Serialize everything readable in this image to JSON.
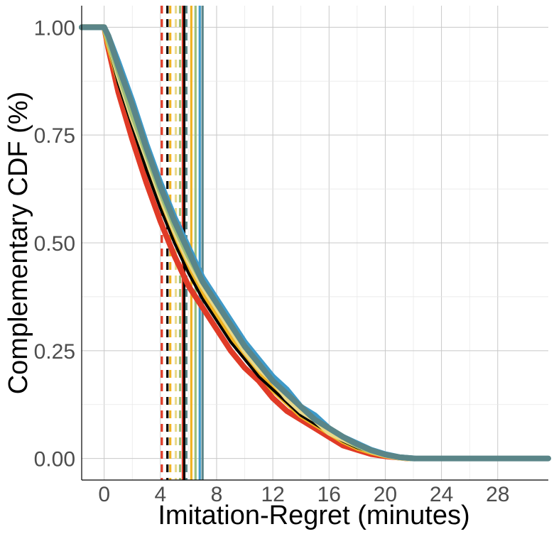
{
  "chart_data": {
    "type": "line",
    "title": "",
    "xlabel": "Imitation-Regret (minutes)",
    "ylabel": "Complementary CDF (%)",
    "xlim": [
      -1.6,
      31.6
    ],
    "ylim": [
      -0.05,
      1.05
    ],
    "x_ticks": [
      0,
      4,
      8,
      12,
      16,
      20,
      24,
      28
    ],
    "x_tick_labels": [
      "0",
      "4",
      "8",
      "12",
      "16",
      "20",
      "24",
      "28"
    ],
    "y_ticks": [
      0,
      0.25,
      0.5,
      0.75,
      1.0
    ],
    "y_tick_labels": [
      "0.00",
      "0.25",
      "0.50",
      "0.75",
      "1.00"
    ],
    "grid": true,
    "legend": "none",
    "series": [
      {
        "color": "#e03a26",
        "width": 8,
        "x": [
          -1.6,
          0,
          0.3,
          1,
          2,
          3,
          4,
          5,
          6,
          7,
          8,
          9,
          10,
          11,
          12,
          13,
          14,
          15,
          16,
          17,
          18,
          19,
          20,
          21,
          21.6
        ],
        "y": [
          1,
          1,
          0.95,
          0.85,
          0.74,
          0.64,
          0.55,
          0.47,
          0.4,
          0.35,
          0.3,
          0.25,
          0.21,
          0.18,
          0.14,
          0.11,
          0.09,
          0.07,
          0.05,
          0.03,
          0.02,
          0.01,
          0.005,
          0.002,
          0
        ]
      },
      {
        "color": "#f0b323",
        "width": 8,
        "x": [
          -1.6,
          0,
          0.3,
          1,
          2,
          3,
          4,
          5,
          6,
          7,
          8,
          9,
          10,
          11,
          12,
          13,
          14,
          15,
          16,
          17,
          18,
          19,
          20,
          21,
          21.7
        ],
        "y": [
          1,
          1,
          0.96,
          0.88,
          0.78,
          0.68,
          0.59,
          0.51,
          0.44,
          0.38,
          0.33,
          0.28,
          0.24,
          0.2,
          0.16,
          0.13,
          0.1,
          0.08,
          0.06,
          0.04,
          0.025,
          0.015,
          0.007,
          0.002,
          0
        ]
      },
      {
        "color": "#000000",
        "width": 4,
        "x": [
          -1.6,
          0,
          0.3,
          1,
          2,
          3,
          4,
          5,
          6,
          7,
          8,
          9,
          10,
          11,
          12,
          13,
          14,
          15,
          16,
          17,
          18,
          19,
          20,
          21,
          21.8
        ],
        "y": [
          1,
          1,
          0.96,
          0.87,
          0.77,
          0.67,
          0.58,
          0.5,
          0.43,
          0.37,
          0.32,
          0.27,
          0.23,
          0.19,
          0.16,
          0.13,
          0.1,
          0.08,
          0.06,
          0.04,
          0.025,
          0.015,
          0.007,
          0.002,
          0
        ]
      },
      {
        "color": "#e9d98a",
        "width": 8,
        "x": [
          -1.6,
          0,
          0.3,
          1,
          2,
          3,
          4,
          5,
          6,
          7,
          8,
          9,
          10,
          11,
          12,
          13,
          14,
          15,
          16,
          17,
          18,
          19,
          20,
          21,
          21.8
        ],
        "y": [
          1,
          1,
          0.97,
          0.89,
          0.79,
          0.7,
          0.61,
          0.53,
          0.46,
          0.4,
          0.35,
          0.3,
          0.25,
          0.21,
          0.18,
          0.14,
          0.11,
          0.09,
          0.06,
          0.045,
          0.03,
          0.017,
          0.008,
          0.002,
          0
        ]
      },
      {
        "color": "#9dbf7a",
        "width": 8,
        "x": [
          -1.6,
          0,
          0.3,
          1,
          2,
          3,
          4,
          5,
          6,
          7,
          8,
          9,
          10,
          11,
          12,
          13,
          14,
          15,
          16,
          17,
          18,
          19,
          20,
          21,
          22
        ],
        "y": [
          1,
          1,
          0.97,
          0.9,
          0.8,
          0.71,
          0.62,
          0.54,
          0.47,
          0.41,
          0.36,
          0.31,
          0.26,
          0.22,
          0.19,
          0.15,
          0.12,
          0.09,
          0.07,
          0.05,
          0.03,
          0.018,
          0.009,
          0.003,
          0
        ]
      },
      {
        "color": "#3e9ac9",
        "width": 8,
        "x": [
          -1.6,
          0,
          0.3,
          1,
          2,
          3,
          4,
          5,
          6,
          7,
          8,
          9,
          10,
          11,
          12,
          13,
          14,
          15,
          16,
          17,
          18,
          19,
          20,
          21,
          22.1
        ],
        "y": [
          1,
          1,
          0.98,
          0.92,
          0.83,
          0.73,
          0.64,
          0.56,
          0.49,
          0.42,
          0.37,
          0.32,
          0.27,
          0.23,
          0.19,
          0.16,
          0.12,
          0.1,
          0.07,
          0.05,
          0.035,
          0.02,
          0.01,
          0.003,
          0
        ]
      },
      {
        "color": "#5a8588",
        "width": 8,
        "x": [
          -1.6,
          0,
          0.3,
          1,
          2,
          3,
          4,
          5,
          6,
          7,
          8,
          9,
          10,
          11,
          12,
          13,
          14,
          15,
          16,
          17,
          18,
          19,
          20,
          21,
          22.1,
          31.6
        ],
        "y": [
          1,
          1,
          0.98,
          0.91,
          0.82,
          0.72,
          0.63,
          0.55,
          0.48,
          0.41,
          0.36,
          0.31,
          0.26,
          0.22,
          0.18,
          0.15,
          0.12,
          0.09,
          0.07,
          0.05,
          0.033,
          0.019,
          0.009,
          0.003,
          0,
          0
        ]
      }
    ],
    "vlines": [
      {
        "x": 4.1,
        "color": "#e03a26",
        "style": "dashed"
      },
      {
        "x": 4.5,
        "color": "#000000",
        "style": "dashed"
      },
      {
        "x": 4.7,
        "color": "#f0b323",
        "style": "dashed"
      },
      {
        "x": 5.1,
        "color": "#e9d98a",
        "style": "dashed"
      },
      {
        "x": 5.4,
        "color": "#9dbf7a",
        "style": "dashed"
      },
      {
        "x": 5.6,
        "color": "#e03a26",
        "style": "solid"
      },
      {
        "x": 5.7,
        "color": "#000000",
        "style": "solid"
      },
      {
        "x": 5.85,
        "color": "#5a8588",
        "style": "dashed"
      },
      {
        "x": 6.2,
        "color": "#f0b323",
        "style": "solid"
      },
      {
        "x": 6.5,
        "color": "#9dbf7a",
        "style": "solid"
      },
      {
        "x": 6.8,
        "color": "#3e9ac9",
        "style": "solid"
      },
      {
        "x": 7.0,
        "color": "#5a8588",
        "style": "solid"
      }
    ]
  }
}
